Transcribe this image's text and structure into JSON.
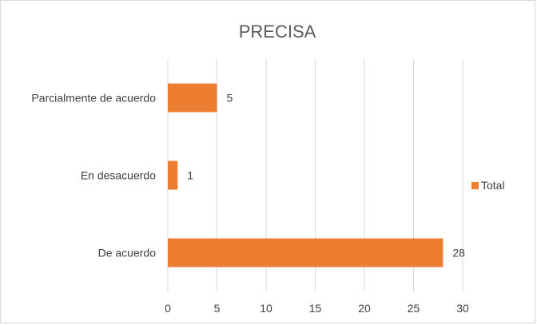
{
  "chart_data": {
    "type": "bar",
    "orientation": "horizontal",
    "title": "PRECISA",
    "categories": [
      "De acuerdo",
      "En desacuerdo",
      "Parcialmente de acuerdo"
    ],
    "series": [
      {
        "name": "Total",
        "values": [
          28,
          1,
          5
        ],
        "color": "#ED7D31"
      }
    ],
    "xlim": [
      0,
      30
    ],
    "xticks": [
      0,
      5,
      10,
      15,
      20,
      25,
      30
    ],
    "grid": true,
    "data_labels": true,
    "legend_position": "right",
    "colors": {
      "bar": "#ED7D31",
      "grid": "#d9d9d9",
      "text": "#404040",
      "title": "#595959"
    }
  }
}
